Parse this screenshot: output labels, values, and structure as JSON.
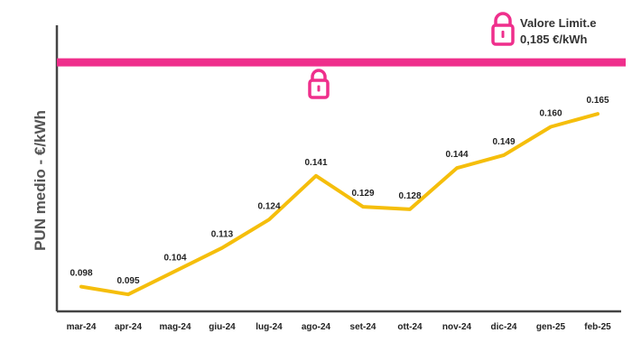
{
  "chart_data": {
    "type": "line",
    "ylabel": "PUN medio - €/kWh",
    "xlabel": "",
    "categories": [
      "mar-24",
      "apr-24",
      "mag-24",
      "giu-24",
      "lug-24",
      "ago-24",
      "set-24",
      "ott-24",
      "nov-24",
      "dic-24",
      "gen-25",
      "feb-25"
    ],
    "series": [
      {
        "values": [
          0.098,
          0.095,
          0.104,
          0.113,
          0.124,
          0.141,
          0.129,
          0.128,
          0.144,
          0.149,
          0.16,
          0.165
        ],
        "labels": [
          "0.098",
          "0.095",
          "0.104",
          "0.113",
          "0.124",
          "0.141",
          "0.129",
          "0.128",
          "0.144",
          "0.149",
          "0.160",
          "0.165"
        ],
        "color": "#F5BE0B"
      }
    ],
    "reference_line": {
      "value": 0.185,
      "color": "#EF2F8C",
      "icon": "lock-icon",
      "legend_title": "Valore Limit.e",
      "legend_value": "0,185 €/kWh"
    },
    "ylim": [
      0.0884,
      0.1994
    ],
    "grid": false,
    "axis_color": "#444444"
  }
}
